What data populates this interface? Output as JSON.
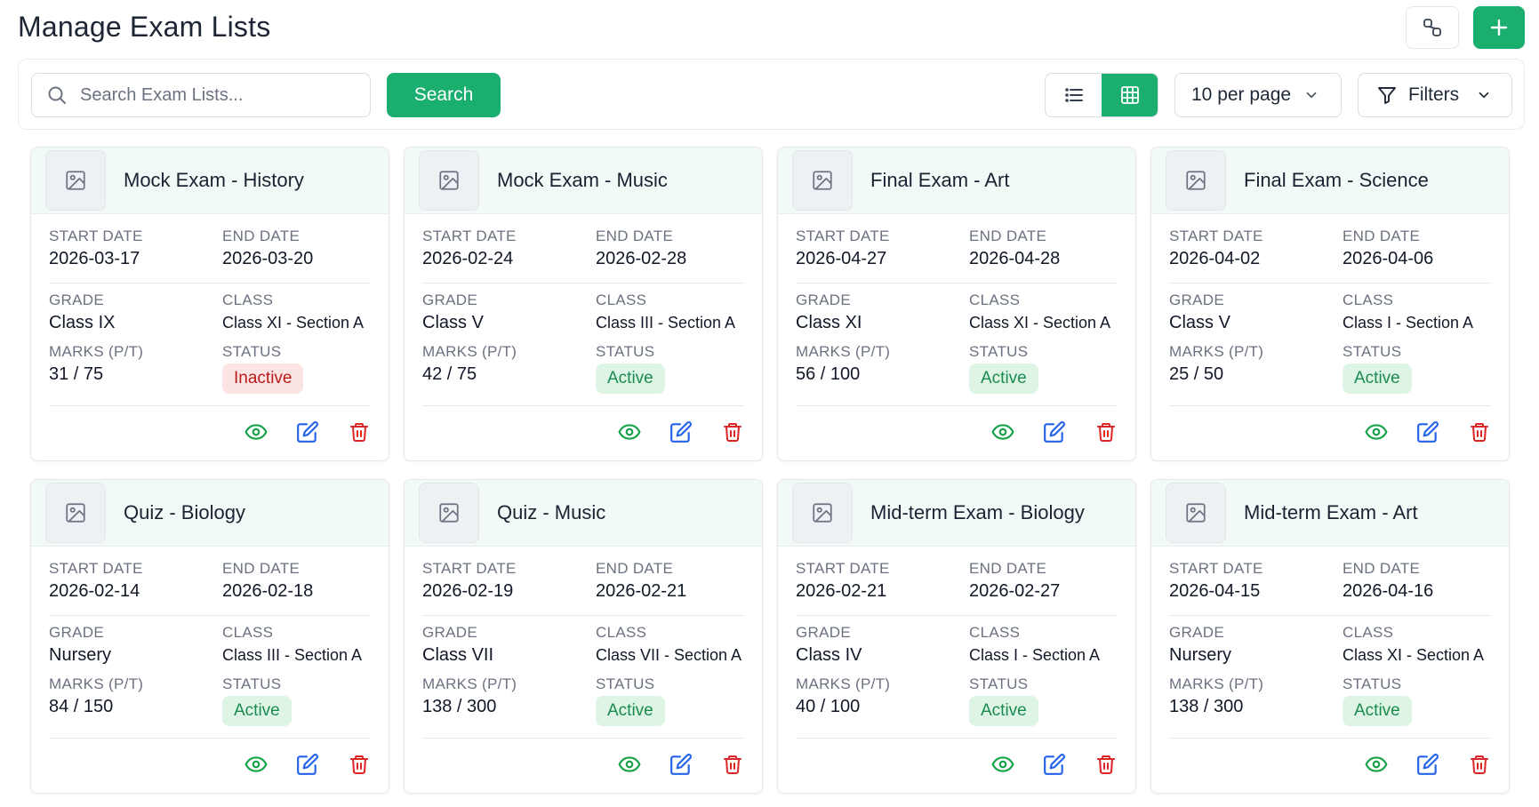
{
  "page": {
    "title": "Manage Exam Lists"
  },
  "header": {
    "settings_icon": "link-icon",
    "add_icon": "plus-icon"
  },
  "search": {
    "placeholder": "Search Exam Lists...",
    "value": "",
    "button_label": "Search"
  },
  "view": {
    "modes": [
      "list",
      "grid"
    ],
    "selected": "grid"
  },
  "per_page": {
    "selected": "10 per page"
  },
  "filters": {
    "label": "Filters"
  },
  "labels": {
    "start_date": "START DATE",
    "end_date": "END DATE",
    "grade": "GRADE",
    "class": "CLASS",
    "marks": "MARKS (P/T)",
    "status": "STATUS"
  },
  "colors": {
    "accent": "#1aae6f",
    "active_bg": "#def5e6",
    "active_text": "#1a8a4e",
    "inactive_bg": "#fde4e4",
    "inactive_text": "#b91c1c",
    "view_icon": "#16a34a",
    "edit_icon": "#2563eb",
    "delete_icon": "#dc2626"
  },
  "exams": [
    {
      "title": "Mock Exam - History",
      "start_date": "2026-03-17",
      "end_date": "2026-03-20",
      "grade": "Class IX",
      "class": "Class XI - Section A",
      "marks": "31 / 75",
      "status": "Inactive"
    },
    {
      "title": "Mock Exam - Music",
      "start_date": "2026-02-24",
      "end_date": "2026-02-28",
      "grade": "Class V",
      "class": "Class III - Section A",
      "marks": "42 / 75",
      "status": "Active"
    },
    {
      "title": "Final Exam - Art",
      "start_date": "2026-04-27",
      "end_date": "2026-04-28",
      "grade": "Class XI",
      "class": "Class XI - Section A",
      "marks": "56 / 100",
      "status": "Active"
    },
    {
      "title": "Final Exam - Science",
      "start_date": "2026-04-02",
      "end_date": "2026-04-06",
      "grade": "Class V",
      "class": "Class I - Section A",
      "marks": "25 / 50",
      "status": "Active"
    },
    {
      "title": "Quiz - Biology",
      "start_date": "2026-02-14",
      "end_date": "2026-02-18",
      "grade": "Nursery",
      "class": "Class III - Section A",
      "marks": "84 / 150",
      "status": "Active"
    },
    {
      "title": "Quiz - Music",
      "start_date": "2026-02-19",
      "end_date": "2026-02-21",
      "grade": "Class VII",
      "class": "Class VII - Section A",
      "marks": "138 / 300",
      "status": "Active"
    },
    {
      "title": "Mid-term Exam - Biology",
      "start_date": "2026-02-21",
      "end_date": "2026-02-27",
      "grade": "Class IV",
      "class": "Class I - Section A",
      "marks": "40 / 100",
      "status": "Active"
    },
    {
      "title": "Mid-term Exam - Art",
      "start_date": "2026-04-15",
      "end_date": "2026-04-16",
      "grade": "Nursery",
      "class": "Class XI - Section A",
      "marks": "138 / 300",
      "status": "Active"
    }
  ]
}
